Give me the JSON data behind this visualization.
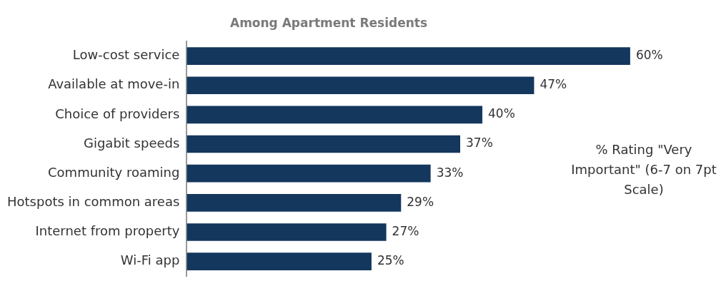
{
  "chart_data": {
    "type": "bar",
    "orientation": "horizontal",
    "title": "Among Apartment Residents",
    "categories": [
      "Low-cost service",
      "Available at move-in",
      "Choice of providers",
      "Gigabit speeds",
      "Community roaming",
      "Hotspots in common areas",
      "Internet from property",
      "Wi-Fi app"
    ],
    "values": [
      60,
      47,
      40,
      37,
      33,
      29,
      27,
      25
    ],
    "color": "#14375e",
    "data_labels": true,
    "value_labels": [
      "60%",
      "47%",
      "40%",
      "37%",
      "33%",
      "29%",
      "27%",
      "25%"
    ],
    "annotations": [
      "% Rating \"Very Important\" (6-7 on 7pt Scale)"
    ]
  }
}
